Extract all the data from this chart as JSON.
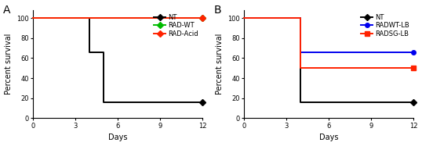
{
  "panel_A": {
    "label": "A",
    "series": [
      {
        "name": "NT",
        "color": "#000000",
        "marker": "D",
        "markersize": 4,
        "x": [
          0,
          4,
          4,
          5,
          5,
          12
        ],
        "y": [
          100,
          100,
          66,
          66,
          16,
          16
        ]
      },
      {
        "name": "RAD-WT",
        "color": "#00bb00",
        "marker": "D",
        "markersize": 4,
        "x": [
          0,
          12
        ],
        "y": [
          100,
          100
        ]
      },
      {
        "name": "RAD-Acid",
        "color": "#ff2200",
        "marker": "D",
        "markersize": 4,
        "x": [
          0,
          12
        ],
        "y": [
          100,
          100
        ]
      }
    ],
    "xlabel": "Days",
    "ylabel": "Percent survival",
    "xlim": [
      0,
      12
    ],
    "ylim": [
      0,
      108
    ],
    "xticks": [
      0,
      3,
      6,
      9,
      12
    ],
    "yticks": [
      0,
      20,
      40,
      60,
      80,
      100
    ],
    "legend_order": [
      1,
      0,
      2
    ]
  },
  "panel_B": {
    "label": "B",
    "series": [
      {
        "name": "NT",
        "color": "#000000",
        "marker": "D",
        "markersize": 4,
        "x": [
          0,
          4,
          4,
          5,
          5,
          12
        ],
        "y": [
          100,
          100,
          16,
          16,
          16,
          16
        ]
      },
      {
        "name": "RADWT-LB",
        "color": "#0000ee",
        "marker": "o",
        "markersize": 4,
        "x": [
          0,
          4,
          4,
          6,
          6,
          12
        ],
        "y": [
          100,
          100,
          66,
          66,
          66,
          66
        ]
      },
      {
        "name": "RADSG-LB",
        "color": "#ff2200",
        "marker": "s",
        "markersize": 4,
        "x": [
          0,
          4,
          4,
          6,
          6,
          12
        ],
        "y": [
          100,
          100,
          50,
          50,
          50,
          50
        ]
      }
    ],
    "xlabel": "Days",
    "ylabel": "Percent survival",
    "xlim": [
      0,
      12
    ],
    "ylim": [
      0,
      108
    ],
    "xticks": [
      0,
      3,
      6,
      9,
      12
    ],
    "yticks": [
      0,
      20,
      40,
      60,
      80,
      100
    ],
    "legend_order": [
      1,
      0,
      2
    ]
  },
  "background_color": "#ffffff",
  "line_width": 1.4,
  "legend_fontsize": 6.0,
  "tick_fontsize": 6.0,
  "axis_label_fontsize": 7.0,
  "panel_label_fontsize": 10
}
